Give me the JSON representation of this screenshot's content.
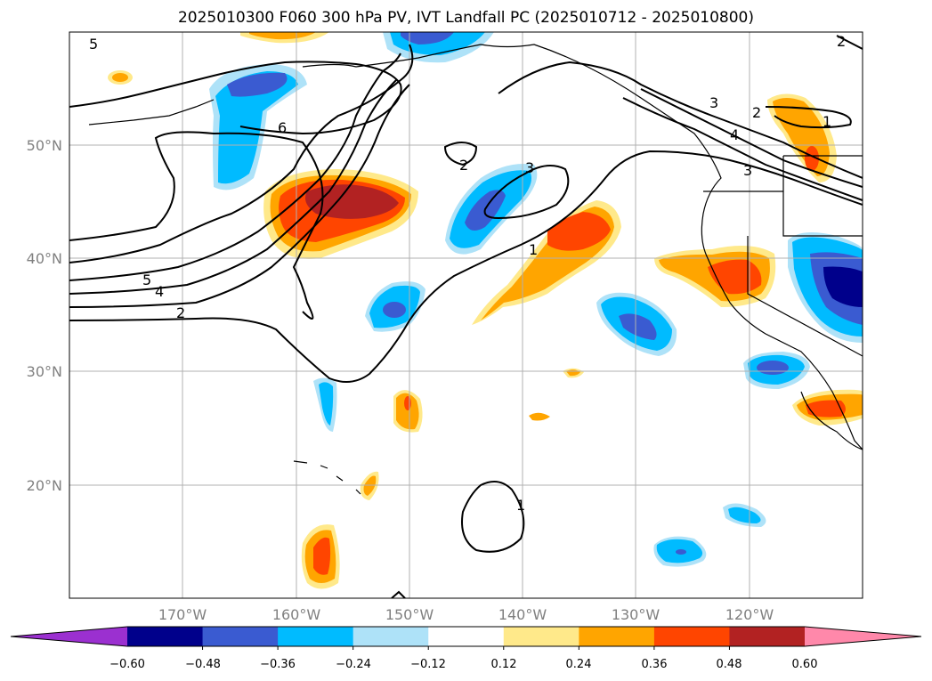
{
  "title": "2025010300 F060 300 hPa PV, IVT Landfall PC (2025010712 - 2025010800)",
  "lat_labels": [
    "50°N",
    "40°N",
    "30°N",
    "20°N"
  ],
  "lon_labels": [
    "170°W",
    "160°W",
    "150°W",
    "140°W",
    "130°W",
    "120°W"
  ],
  "colorbar": {
    "tick_labels": [
      "−0.60",
      "−0.48",
      "−0.36",
      "−0.24",
      "−0.12",
      "0.12",
      "0.24",
      "0.36",
      "0.48",
      "0.60"
    ],
    "colors": [
      "#9b30d0",
      "#00008b",
      "#3a5bd1",
      "#00bbff",
      "#aee2f8",
      "#ffffff",
      "#ffe98a",
      "#ffa500",
      "#ff4500",
      "#b22222",
      "#ff88aa"
    ]
  },
  "map": {
    "projection": "lat-lon",
    "lon_range": [
      -180,
      -110
    ],
    "lat_range": [
      10,
      60
    ],
    "gridlines": true,
    "contour_labels": [
      "5",
      "6",
      "2",
      "3",
      "2",
      "3",
      "4",
      "3",
      "2",
      "1",
      "1",
      "5",
      "4",
      "2",
      "1"
    ]
  }
}
